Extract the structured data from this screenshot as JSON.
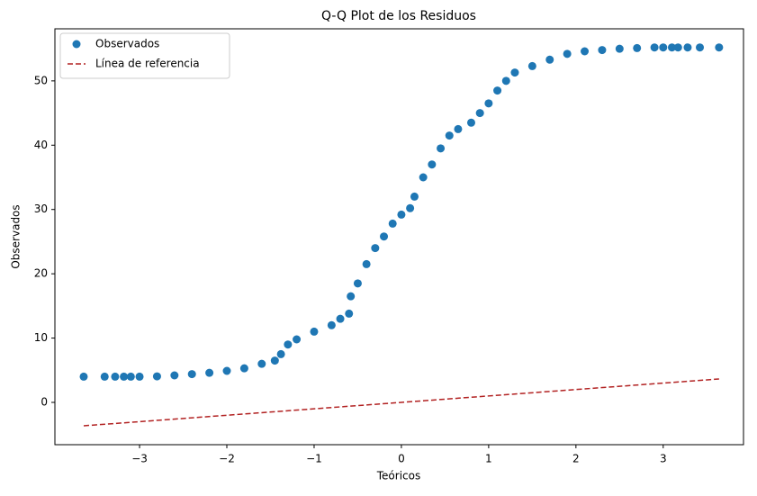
{
  "chart_data": {
    "type": "scatter",
    "title": "Q-Q Plot de los Residuos",
    "x_label": "Teóricos",
    "y_label": "Observados",
    "xlim": [
      -3.97,
      3.92
    ],
    "ylim": [
      -6.58,
      58.1
    ],
    "xticks": [
      {
        "value": -3,
        "label": "−3"
      },
      {
        "value": -2,
        "label": "−2"
      },
      {
        "value": -1,
        "label": "−1"
      },
      0,
      1,
      2,
      3
    ],
    "yticks": [
      0,
      10,
      20,
      30,
      40,
      50
    ],
    "legend": "upper left",
    "series": [
      {
        "name": "Observados",
        "type": "scatter",
        "color": "#1f77b4",
        "x": [
          -3.64,
          -3.4,
          -3.28,
          -3.18,
          -3.1,
          -3.0,
          -2.8,
          -2.6,
          -2.4,
          -2.2,
          -2.0,
          -1.8,
          -1.6,
          -1.45,
          -1.38,
          -1.3,
          -1.2,
          -1.0,
          -0.8,
          -0.7,
          -0.6,
          -0.58,
          -0.5,
          -0.4,
          -0.3,
          -0.2,
          -0.1,
          0,
          0.1,
          0.15,
          0.25,
          0.35,
          0.45,
          0.55,
          0.65,
          0.8,
          0.9,
          1.0,
          1.1,
          1.2,
          1.3,
          1.5,
          1.7,
          1.9,
          2.1,
          2.3,
          2.5,
          2.7,
          2.9,
          3.0,
          3.1,
          3.17,
          3.28,
          3.42,
          3.64
        ],
        "values": [
          4.0,
          4.0,
          4.0,
          4.0,
          4.0,
          4.0,
          4.05,
          4.2,
          4.4,
          4.6,
          4.9,
          5.3,
          6.0,
          6.5,
          7.5,
          9.0,
          9.8,
          11.0,
          12.0,
          13.0,
          13.8,
          16.5,
          18.5,
          21.5,
          24,
          25.8,
          27.8,
          29.2,
          30.2,
          32,
          35,
          37,
          39.5,
          41.5,
          42.5,
          43.5,
          45,
          46.5,
          48.5,
          50,
          51.3,
          52.3,
          53.3,
          54.2,
          54.6,
          54.8,
          55.0,
          55.1,
          55.2,
          55.2,
          55.2,
          55.2,
          55.2,
          55.2,
          55.2
        ]
      },
      {
        "name": "Línea de referencia",
        "type": "line",
        "color": "#b22222",
        "dashed": true,
        "x": [
          -3.64,
          3.64
        ],
        "values": [
          -3.64,
          3.64
        ]
      }
    ]
  }
}
